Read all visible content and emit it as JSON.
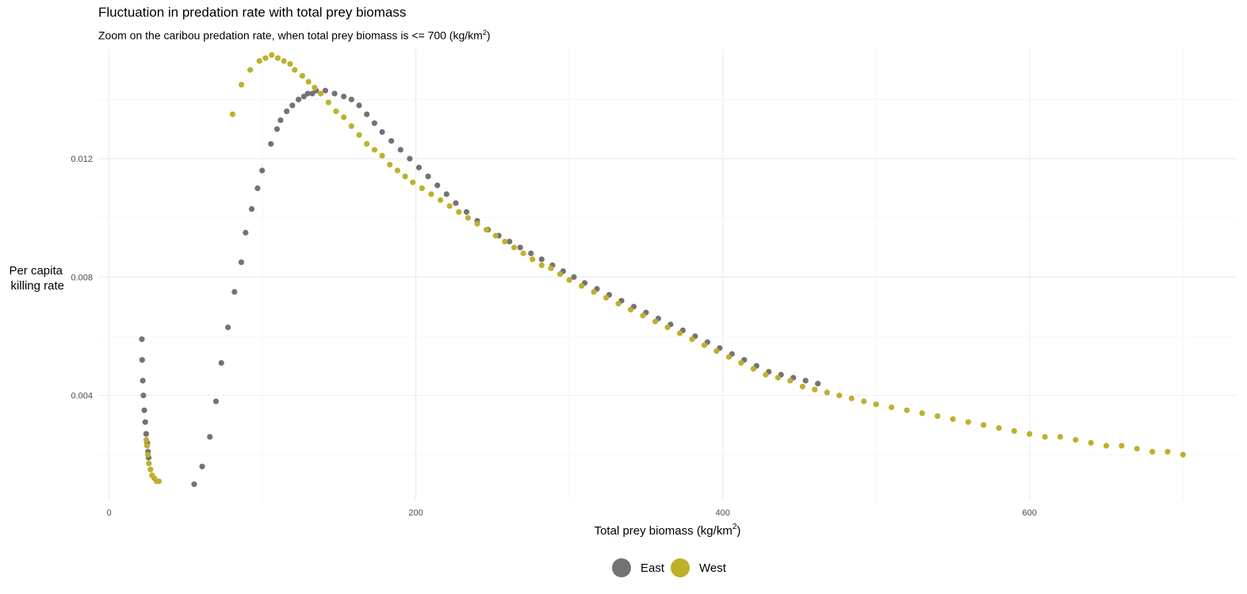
{
  "chart_data": {
    "type": "scatter",
    "title": "Fluctuation in predation rate with total prey biomass",
    "subtitle_prefix": "Zoom on the caribou predation rate, when total prey biomass is <= 700 (kg/km",
    "subtitle_sup": "2",
    "subtitle_suffix": ")",
    "xlabel_prefix": "Total prey biomass (kg/km",
    "xlabel_sup": "2",
    "xlabel_suffix": ")",
    "ylabel_lines": [
      "Per capita",
      "killing rate"
    ],
    "xlim": [
      -7,
      735
    ],
    "ylim": [
      0.00048,
      0.0157
    ],
    "xticks": [
      0,
      200,
      400,
      600
    ],
    "xtick_labels": [
      "0",
      "200",
      "400",
      "600"
    ],
    "yticks": [
      0.004,
      0.008,
      0.012
    ],
    "ytick_labels": [
      "0.004",
      "0.008",
      "0.012"
    ],
    "grid": true,
    "legend_position": "bottom",
    "series": [
      {
        "name": "East",
        "color": "#737373",
        "points": [
          [
            21.4,
            0.0059
          ],
          [
            21.6,
            0.0052
          ],
          [
            22.0,
            0.0045
          ],
          [
            22.4,
            0.004
          ],
          [
            23.0,
            0.0035
          ],
          [
            23.6,
            0.0031
          ],
          [
            24.2,
            0.0027
          ],
          [
            24.9,
            0.0024
          ],
          [
            25.4,
            0.0021
          ],
          [
            25.8,
            0.0019
          ],
          [
            55.5,
            0.001
          ],
          [
            60.7,
            0.0016
          ],
          [
            65.7,
            0.0026
          ],
          [
            69.7,
            0.0038
          ],
          [
            73.2,
            0.0051
          ],
          [
            77.5,
            0.0063
          ],
          [
            81.8,
            0.0075
          ],
          [
            86.2,
            0.0085
          ],
          [
            89.0,
            0.0095
          ],
          [
            93.0,
            0.0103
          ],
          [
            96.8,
            0.011
          ],
          [
            99.8,
            0.0116
          ],
          [
            105.5,
            0.0125
          ],
          [
            109.5,
            0.013
          ],
          [
            111.8,
            0.0133
          ],
          [
            115.8,
            0.0136
          ],
          [
            119.5,
            0.0138
          ],
          [
            123.5,
            0.014
          ],
          [
            127.0,
            0.0141
          ],
          [
            129.5,
            0.0142
          ],
          [
            132.5,
            0.0142
          ],
          [
            135.0,
            0.0143
          ],
          [
            141.0,
            0.0143
          ],
          [
            147.0,
            0.0142
          ],
          [
            153.0,
            0.0141
          ],
          [
            158.0,
            0.014
          ],
          [
            163.0,
            0.0138
          ],
          [
            168.0,
            0.0135
          ],
          [
            173.0,
            0.0132
          ],
          [
            178.0,
            0.0129
          ],
          [
            184.0,
            0.0126
          ],
          [
            190.0,
            0.0123
          ],
          [
            196.0,
            0.012
          ],
          [
            202.0,
            0.0117
          ],
          [
            208.0,
            0.0114
          ],
          [
            214.0,
            0.0111
          ],
          [
            220.0,
            0.0108
          ],
          [
            226.0,
            0.0105
          ],
          [
            233.0,
            0.0102
          ],
          [
            240.0,
            0.0099
          ],
          [
            247.0,
            0.0096
          ],
          [
            254.0,
            0.0094
          ],
          [
            261.0,
            0.0092
          ],
          [
            268.0,
            0.009
          ],
          [
            275.0,
            0.0088
          ],
          [
            282.0,
            0.0086
          ],
          [
            289.0,
            0.0084
          ],
          [
            296.0,
            0.0082
          ],
          [
            303.0,
            0.008
          ],
          [
            310.0,
            0.0078
          ],
          [
            318.0,
            0.0076
          ],
          [
            326.0,
            0.0074
          ],
          [
            334.0,
            0.0072
          ],
          [
            342.0,
            0.007
          ],
          [
            350.0,
            0.0068
          ],
          [
            358.0,
            0.0066
          ],
          [
            366.0,
            0.0064
          ],
          [
            374.0,
            0.0062
          ],
          [
            382.0,
            0.006
          ],
          [
            390.0,
            0.0058
          ],
          [
            398.0,
            0.0056
          ],
          [
            406.0,
            0.0054
          ],
          [
            414.0,
            0.0052
          ],
          [
            422.0,
            0.005
          ],
          [
            430.0,
            0.0048
          ],
          [
            438.0,
            0.0047
          ],
          [
            446.0,
            0.0046
          ],
          [
            454.0,
            0.0045
          ],
          [
            462.0,
            0.0044
          ]
        ]
      },
      {
        "name": "West",
        "color": "#BFB02C",
        "points": [
          [
            24.3,
            0.0025
          ],
          [
            24.8,
            0.0023
          ],
          [
            25.3,
            0.002
          ],
          [
            26.0,
            0.0017
          ],
          [
            27.0,
            0.0015
          ],
          [
            28.0,
            0.0013
          ],
          [
            29.5,
            0.0012
          ],
          [
            31.0,
            0.0011
          ],
          [
            32.5,
            0.0011
          ],
          [
            80.5,
            0.0135
          ],
          [
            86.3,
            0.0145
          ],
          [
            92.0,
            0.015
          ],
          [
            98.0,
            0.0153
          ],
          [
            102.0,
            0.0154
          ],
          [
            106.0,
            0.0155
          ],
          [
            110.0,
            0.0154
          ],
          [
            114.0,
            0.0153
          ],
          [
            118.0,
            0.0152
          ],
          [
            121.0,
            0.015
          ],
          [
            126.0,
            0.0148
          ],
          [
            130.0,
            0.0146
          ],
          [
            134.0,
            0.0144
          ],
          [
            138.0,
            0.0142
          ],
          [
            143.0,
            0.0139
          ],
          [
            148.0,
            0.0136
          ],
          [
            153.0,
            0.0134
          ],
          [
            158.0,
            0.0131
          ],
          [
            163.0,
            0.0128
          ],
          [
            168.0,
            0.0125
          ],
          [
            173.0,
            0.0123
          ],
          [
            178.0,
            0.0121
          ],
          [
            183.0,
            0.0118
          ],
          [
            188.0,
            0.0116
          ],
          [
            193.0,
            0.0114
          ],
          [
            198.0,
            0.0112
          ],
          [
            204.0,
            0.011
          ],
          [
            210.0,
            0.0108
          ],
          [
            216.0,
            0.0106
          ],
          [
            222.0,
            0.0104
          ],
          [
            228.0,
            0.0102
          ],
          [
            234.0,
            0.01
          ],
          [
            240.0,
            0.0098
          ],
          [
            246.0,
            0.0096
          ],
          [
            252.0,
            0.0094
          ],
          [
            258.0,
            0.0092
          ],
          [
            264.0,
            0.009
          ],
          [
            270.0,
            0.0088
          ],
          [
            276.0,
            0.0086
          ],
          [
            282.0,
            0.0084
          ],
          [
            288.0,
            0.0083
          ],
          [
            294.0,
            0.0081
          ],
          [
            300.0,
            0.0079
          ],
          [
            308.0,
            0.0077
          ],
          [
            316.0,
            0.0075
          ],
          [
            324.0,
            0.0073
          ],
          [
            332.0,
            0.0071
          ],
          [
            340.0,
            0.0069
          ],
          [
            348.0,
            0.0067
          ],
          [
            356.0,
            0.0065
          ],
          [
            364.0,
            0.0063
          ],
          [
            372.0,
            0.0061
          ],
          [
            380.0,
            0.0059
          ],
          [
            388.0,
            0.0057
          ],
          [
            396.0,
            0.0055
          ],
          [
            404.0,
            0.0053
          ],
          [
            412.0,
            0.0051
          ],
          [
            420.0,
            0.0049
          ],
          [
            428.0,
            0.0047
          ],
          [
            436.0,
            0.0046
          ],
          [
            444.0,
            0.0045
          ],
          [
            452.0,
            0.0043
          ],
          [
            460.0,
            0.0042
          ],
          [
            468.0,
            0.0041
          ],
          [
            476.0,
            0.004
          ],
          [
            484.0,
            0.0039
          ],
          [
            492.0,
            0.0038
          ],
          [
            500.0,
            0.0037
          ],
          [
            510.0,
            0.0036
          ],
          [
            520.0,
            0.0035
          ],
          [
            530.0,
            0.0034
          ],
          [
            540.0,
            0.0033
          ],
          [
            550.0,
            0.0032
          ],
          [
            560.0,
            0.0031
          ],
          [
            570.0,
            0.003
          ],
          [
            580.0,
            0.0029
          ],
          [
            590.0,
            0.0028
          ],
          [
            600.0,
            0.0027
          ],
          [
            610.0,
            0.0026
          ],
          [
            620.0,
            0.0026
          ],
          [
            630.0,
            0.0025
          ],
          [
            640.0,
            0.0024
          ],
          [
            650.0,
            0.0023
          ],
          [
            660.0,
            0.0023
          ],
          [
            670.0,
            0.0022
          ],
          [
            680.0,
            0.0021
          ],
          [
            690.0,
            0.0021
          ],
          [
            700.0,
            0.002
          ]
        ]
      }
    ]
  }
}
